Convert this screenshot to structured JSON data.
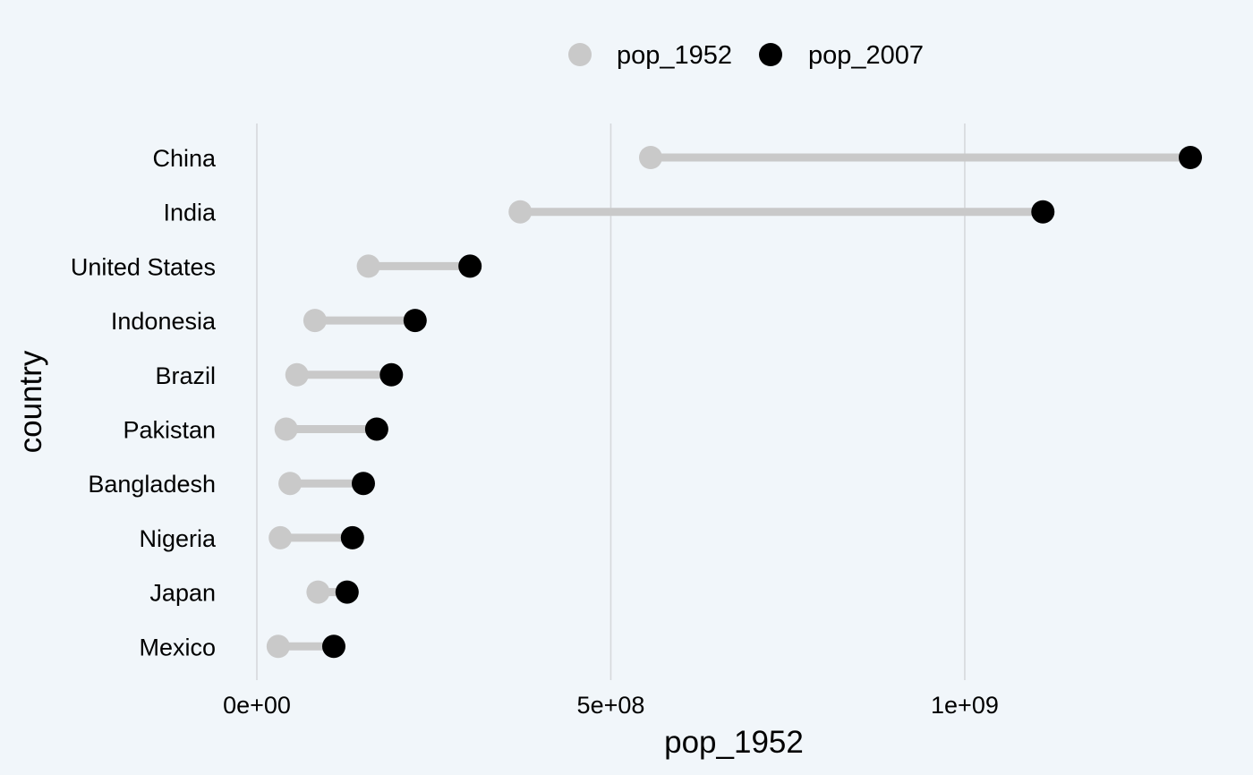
{
  "chart_data": {
    "type": "scatter",
    "subtype": "dumbbell",
    "title": "",
    "xlabel": "pop_1952",
    "ylabel": "country",
    "xlim": [
      0,
      1318683096
    ],
    "x_ticks": [
      0,
      500000000,
      1000000000
    ],
    "x_tick_labels": [
      "0e+00",
      "5e+08",
      "1e+09"
    ],
    "grid": "vertical major gridlines",
    "legend_position": "top",
    "categories": [
      "China",
      "India",
      "United States",
      "Indonesia",
      "Brazil",
      "Pakistan",
      "Bangladesh",
      "Nigeria",
      "Japan",
      "Mexico"
    ],
    "series": [
      {
        "name": "pop_1952",
        "color": "#c9c9c9",
        "values": [
          556263527,
          372000000,
          157553000,
          82052000,
          56602560,
          41346560,
          46886859,
          33119096,
          86459025,
          30144317
        ]
      },
      {
        "name": "pop_2007",
        "color": "#000000",
        "values": [
          1318683096,
          1110396331,
          301139947,
          223547000,
          190010647,
          169270617,
          150448339,
          135031164,
          127467972,
          108700891
        ]
      }
    ],
    "segment_color": "#c9c9c9"
  }
}
